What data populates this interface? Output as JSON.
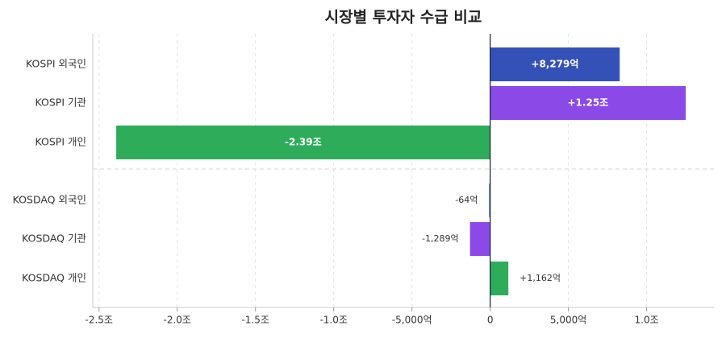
{
  "chart_data": {
    "type": "hbar",
    "title": "시장별 투자자 수급 비교",
    "categories": [
      "KOSPI  외국인",
      "KOSPI  기관",
      "KOSPI  개인",
      "KOSDAQ  외국인",
      "KOSDAQ  기관",
      "KOSDAQ  개인"
    ],
    "values": [
      8279,
      12500,
      -23900,
      -64,
      -1289,
      1162
    ],
    "value_labels": [
      "+8,279억",
      "+1.25조",
      "-2.39조",
      "-64억",
      "-1,289억",
      "+1,162억"
    ],
    "colors": [
      "#3451b8",
      "#8b4ae8",
      "#2eac5a",
      "#3451b8",
      "#8b4ae8",
      "#2eac5a"
    ],
    "xlim": [
      -25400,
      14300
    ],
    "xticks": [
      {
        "value": -25000,
        "label": "-2.5조"
      },
      {
        "value": -20000,
        "label": "-2.0조"
      },
      {
        "value": -15000,
        "label": "-1.5조"
      },
      {
        "value": -10000,
        "label": "-1.0조"
      },
      {
        "value": -5000,
        "label": "-5,000억"
      },
      0,
      {
        "value": 5000,
        "label": "5,000억"
      },
      {
        "value": 10000,
        "label": "1.0조"
      }
    ],
    "grid": true
  }
}
